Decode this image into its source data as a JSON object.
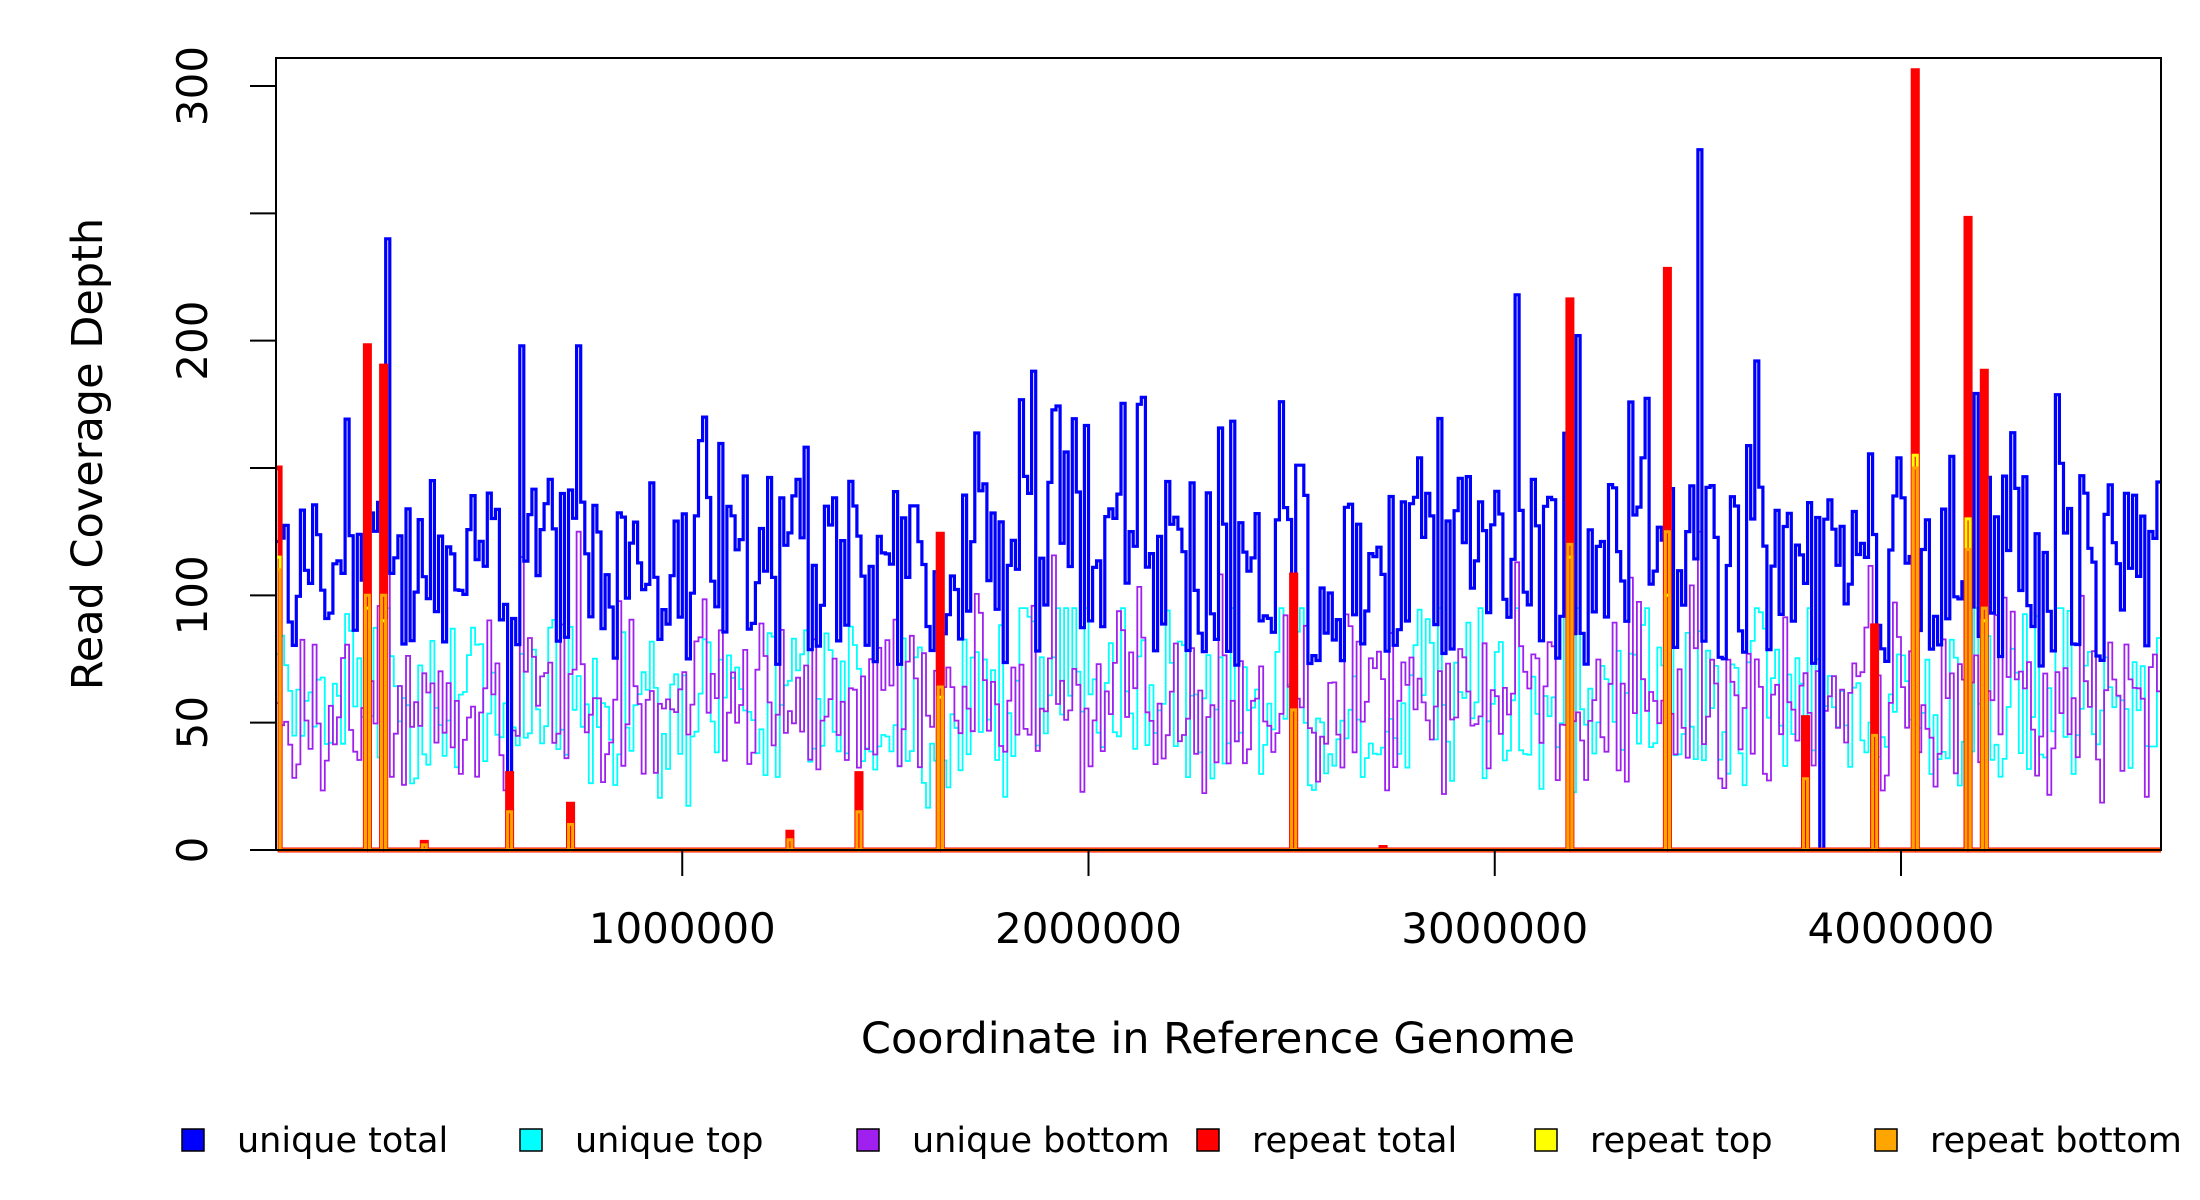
{
  "chart_data": {
    "type": "line",
    "title": "",
    "xlabel": "Coordinate in Reference Genome",
    "ylabel": "Read Coverage Depth",
    "xlim": [
      0,
      4640000
    ],
    "ylim": [
      0,
      300
    ],
    "x_ticks": [
      1000000,
      2000000,
      3000000,
      4000000
    ],
    "x_tick_labels": [
      "1000000",
      "2000000",
      "3000000",
      "4000000"
    ],
    "y_ticks": [
      0,
      50,
      100,
      150,
      200,
      250,
      300
    ],
    "y_tick_labels": [
      "0",
      "50",
      "100",
      "",
      "200",
      "",
      "300"
    ],
    "bin_width": 10000,
    "grid": false,
    "legend_position": "bottom",
    "series": [
      {
        "name": "unique total",
        "color": "#0000FF",
        "description": "fluctuates mostly between 80 and 150, many bins dip to 0 at repeat regions",
        "peaks": [
          [
            225000,
            168
          ],
          [
            275000,
            240
          ],
          [
            605000,
            198
          ],
          [
            745000,
            198
          ],
          [
            1050000,
            170
          ],
          [
            1860000,
            188
          ],
          [
            2120000,
            175
          ],
          [
            3050000,
            218
          ],
          [
            3200000,
            202
          ],
          [
            3500000,
            275
          ],
          [
            3640000,
            192
          ]
        ],
        "zero_bins": [
          220000,
          265000,
          575000,
          1630000,
          2505000,
          3185000,
          3425000,
          3805000,
          4035000,
          4165000,
          4205000
        ],
        "typical_range": [
          60,
          160
        ]
      },
      {
        "name": "unique top",
        "color": "#00FFFF",
        "description": "oscillates around 50-60",
        "typical_range": [
          20,
          90
        ]
      },
      {
        "name": "unique bottom",
        "color": "#A020F0",
        "description": "oscillates around 50-60",
        "typical_range": [
          20,
          120
        ]
      },
      {
        "name": "repeat total",
        "color": "#FF0000",
        "description": "mostly 0 with spikes at repeat regions",
        "spikes": [
          [
            5000,
            150
          ],
          [
            220000,
            198
          ],
          [
            265000,
            190
          ],
          [
            365000,
            3
          ],
          [
            575000,
            30
          ],
          [
            720000,
            18
          ],
          [
            1260000,
            7
          ],
          [
            1430000,
            30
          ],
          [
            1630000,
            124
          ],
          [
            2505000,
            108
          ],
          [
            2725000,
            1
          ],
          [
            3185000,
            216
          ],
          [
            3425000,
            228
          ],
          [
            3760000,
            52
          ],
          [
            3935000,
            88
          ],
          [
            4035000,
            306
          ],
          [
            4165000,
            248
          ],
          [
            4205000,
            188
          ]
        ]
      },
      {
        "name": "repeat top",
        "color": "#FFFF00",
        "description": "mostly 0 with spikes roughly half of repeat total",
        "spikes": [
          [
            5000,
            115
          ],
          [
            220000,
            95
          ],
          [
            265000,
            90
          ],
          [
            1630000,
            60
          ],
          [
            3185000,
            115
          ],
          [
            3425000,
            100
          ],
          [
            4035000,
            155
          ],
          [
            4165000,
            130
          ],
          [
            4205000,
            90
          ]
        ]
      },
      {
        "name": "repeat bottom",
        "color": "#FFA500",
        "description": "mostly 0 with spikes roughly half of repeat total",
        "spikes": [
          [
            5000,
            110
          ],
          [
            220000,
            100
          ],
          [
            265000,
            100
          ],
          [
            365000,
            2
          ],
          [
            575000,
            15
          ],
          [
            720000,
            10
          ],
          [
            1260000,
            4
          ],
          [
            1430000,
            15
          ],
          [
            1630000,
            64
          ],
          [
            2505000,
            55
          ],
          [
            3185000,
            120
          ],
          [
            3425000,
            125
          ],
          [
            3760000,
            28
          ],
          [
            3935000,
            45
          ],
          [
            4035000,
            150
          ],
          [
            4165000,
            118
          ],
          [
            4205000,
            95
          ]
        ]
      }
    ]
  },
  "legend": [
    {
      "label": "unique total",
      "color": "#0000FF"
    },
    {
      "label": "unique top",
      "color": "#00FFFF"
    },
    {
      "label": "unique bottom",
      "color": "#A020F0"
    },
    {
      "label": "repeat total",
      "color": "#FF0000"
    },
    {
      "label": "repeat top",
      "color": "#FFFF00"
    },
    {
      "label": "repeat bottom",
      "color": "#FFA500"
    }
  ]
}
